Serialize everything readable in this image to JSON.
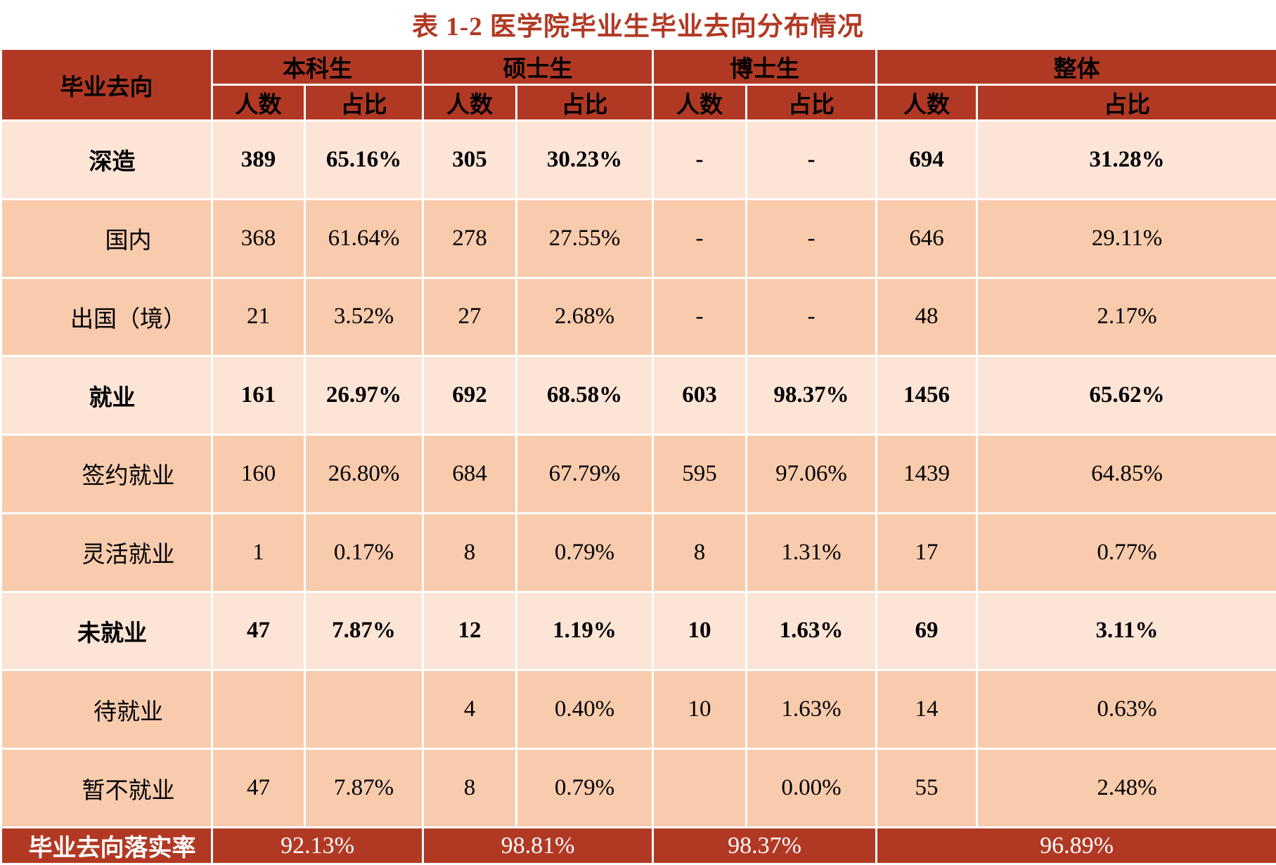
{
  "title": "表 1-2 医学院毕业生毕业去向分布情况",
  "colors": {
    "header_bg": "#B13924",
    "row_major_bg": "#FCE4D6",
    "row_sub_bg": "#F8CBAD",
    "title_color": "#B13924",
    "header_text": "#FFFFFF",
    "body_text": "#000000",
    "gridline": "#FFFFFF"
  },
  "table": {
    "corner_header": "毕业去向",
    "group_headers": [
      "本科生",
      "硕士生",
      "博士生",
      "整体"
    ],
    "sub_headers": [
      "人数",
      "占比"
    ],
    "rows": [
      {
        "label": "深造",
        "bold": true,
        "indent": false,
        "cells": [
          "389",
          "65.16%",
          "305",
          "30.23%",
          "-",
          "-",
          "694",
          "31.28%"
        ]
      },
      {
        "label": "国内",
        "bold": false,
        "indent": true,
        "cells": [
          "368",
          "61.64%",
          "278",
          "27.55%",
          "-",
          "-",
          "646",
          "29.11%"
        ]
      },
      {
        "label": "出国（境）",
        "bold": false,
        "indent": true,
        "cells": [
          "21",
          "3.52%",
          "27",
          "2.68%",
          "-",
          "-",
          "48",
          "2.17%"
        ]
      },
      {
        "label": "就业",
        "bold": true,
        "indent": false,
        "cells": [
          "161",
          "26.97%",
          "692",
          "68.58%",
          "603",
          "98.37%",
          "1456",
          "65.62%"
        ]
      },
      {
        "label": "签约就业",
        "bold": false,
        "indent": true,
        "cells": [
          "160",
          "26.80%",
          "684",
          "67.79%",
          "595",
          "97.06%",
          "1439",
          "64.85%"
        ]
      },
      {
        "label": "灵活就业",
        "bold": false,
        "indent": true,
        "cells": [
          "1",
          "0.17%",
          "8",
          "0.79%",
          "8",
          "1.31%",
          "17",
          "0.77%"
        ]
      },
      {
        "label": "未就业",
        "bold": true,
        "indent": false,
        "cells": [
          "47",
          "7.87%",
          "12",
          "1.19%",
          "10",
          "1.63%",
          "69",
          "3.11%"
        ]
      },
      {
        "label": "待就业",
        "bold": false,
        "indent": true,
        "cells": [
          "",
          "",
          "4",
          "0.40%",
          "10",
          "1.63%",
          "14",
          "0.63%"
        ]
      },
      {
        "label": "暂不就业",
        "bold": false,
        "indent": true,
        "cells": [
          "47",
          "7.87%",
          "8",
          "0.79%",
          "",
          "0.00%",
          "55",
          "2.48%"
        ]
      }
    ],
    "footer": {
      "label": "毕业去向落实率",
      "values": [
        "92.13%",
        "98.81%",
        "98.37%",
        "96.89%"
      ]
    }
  }
}
